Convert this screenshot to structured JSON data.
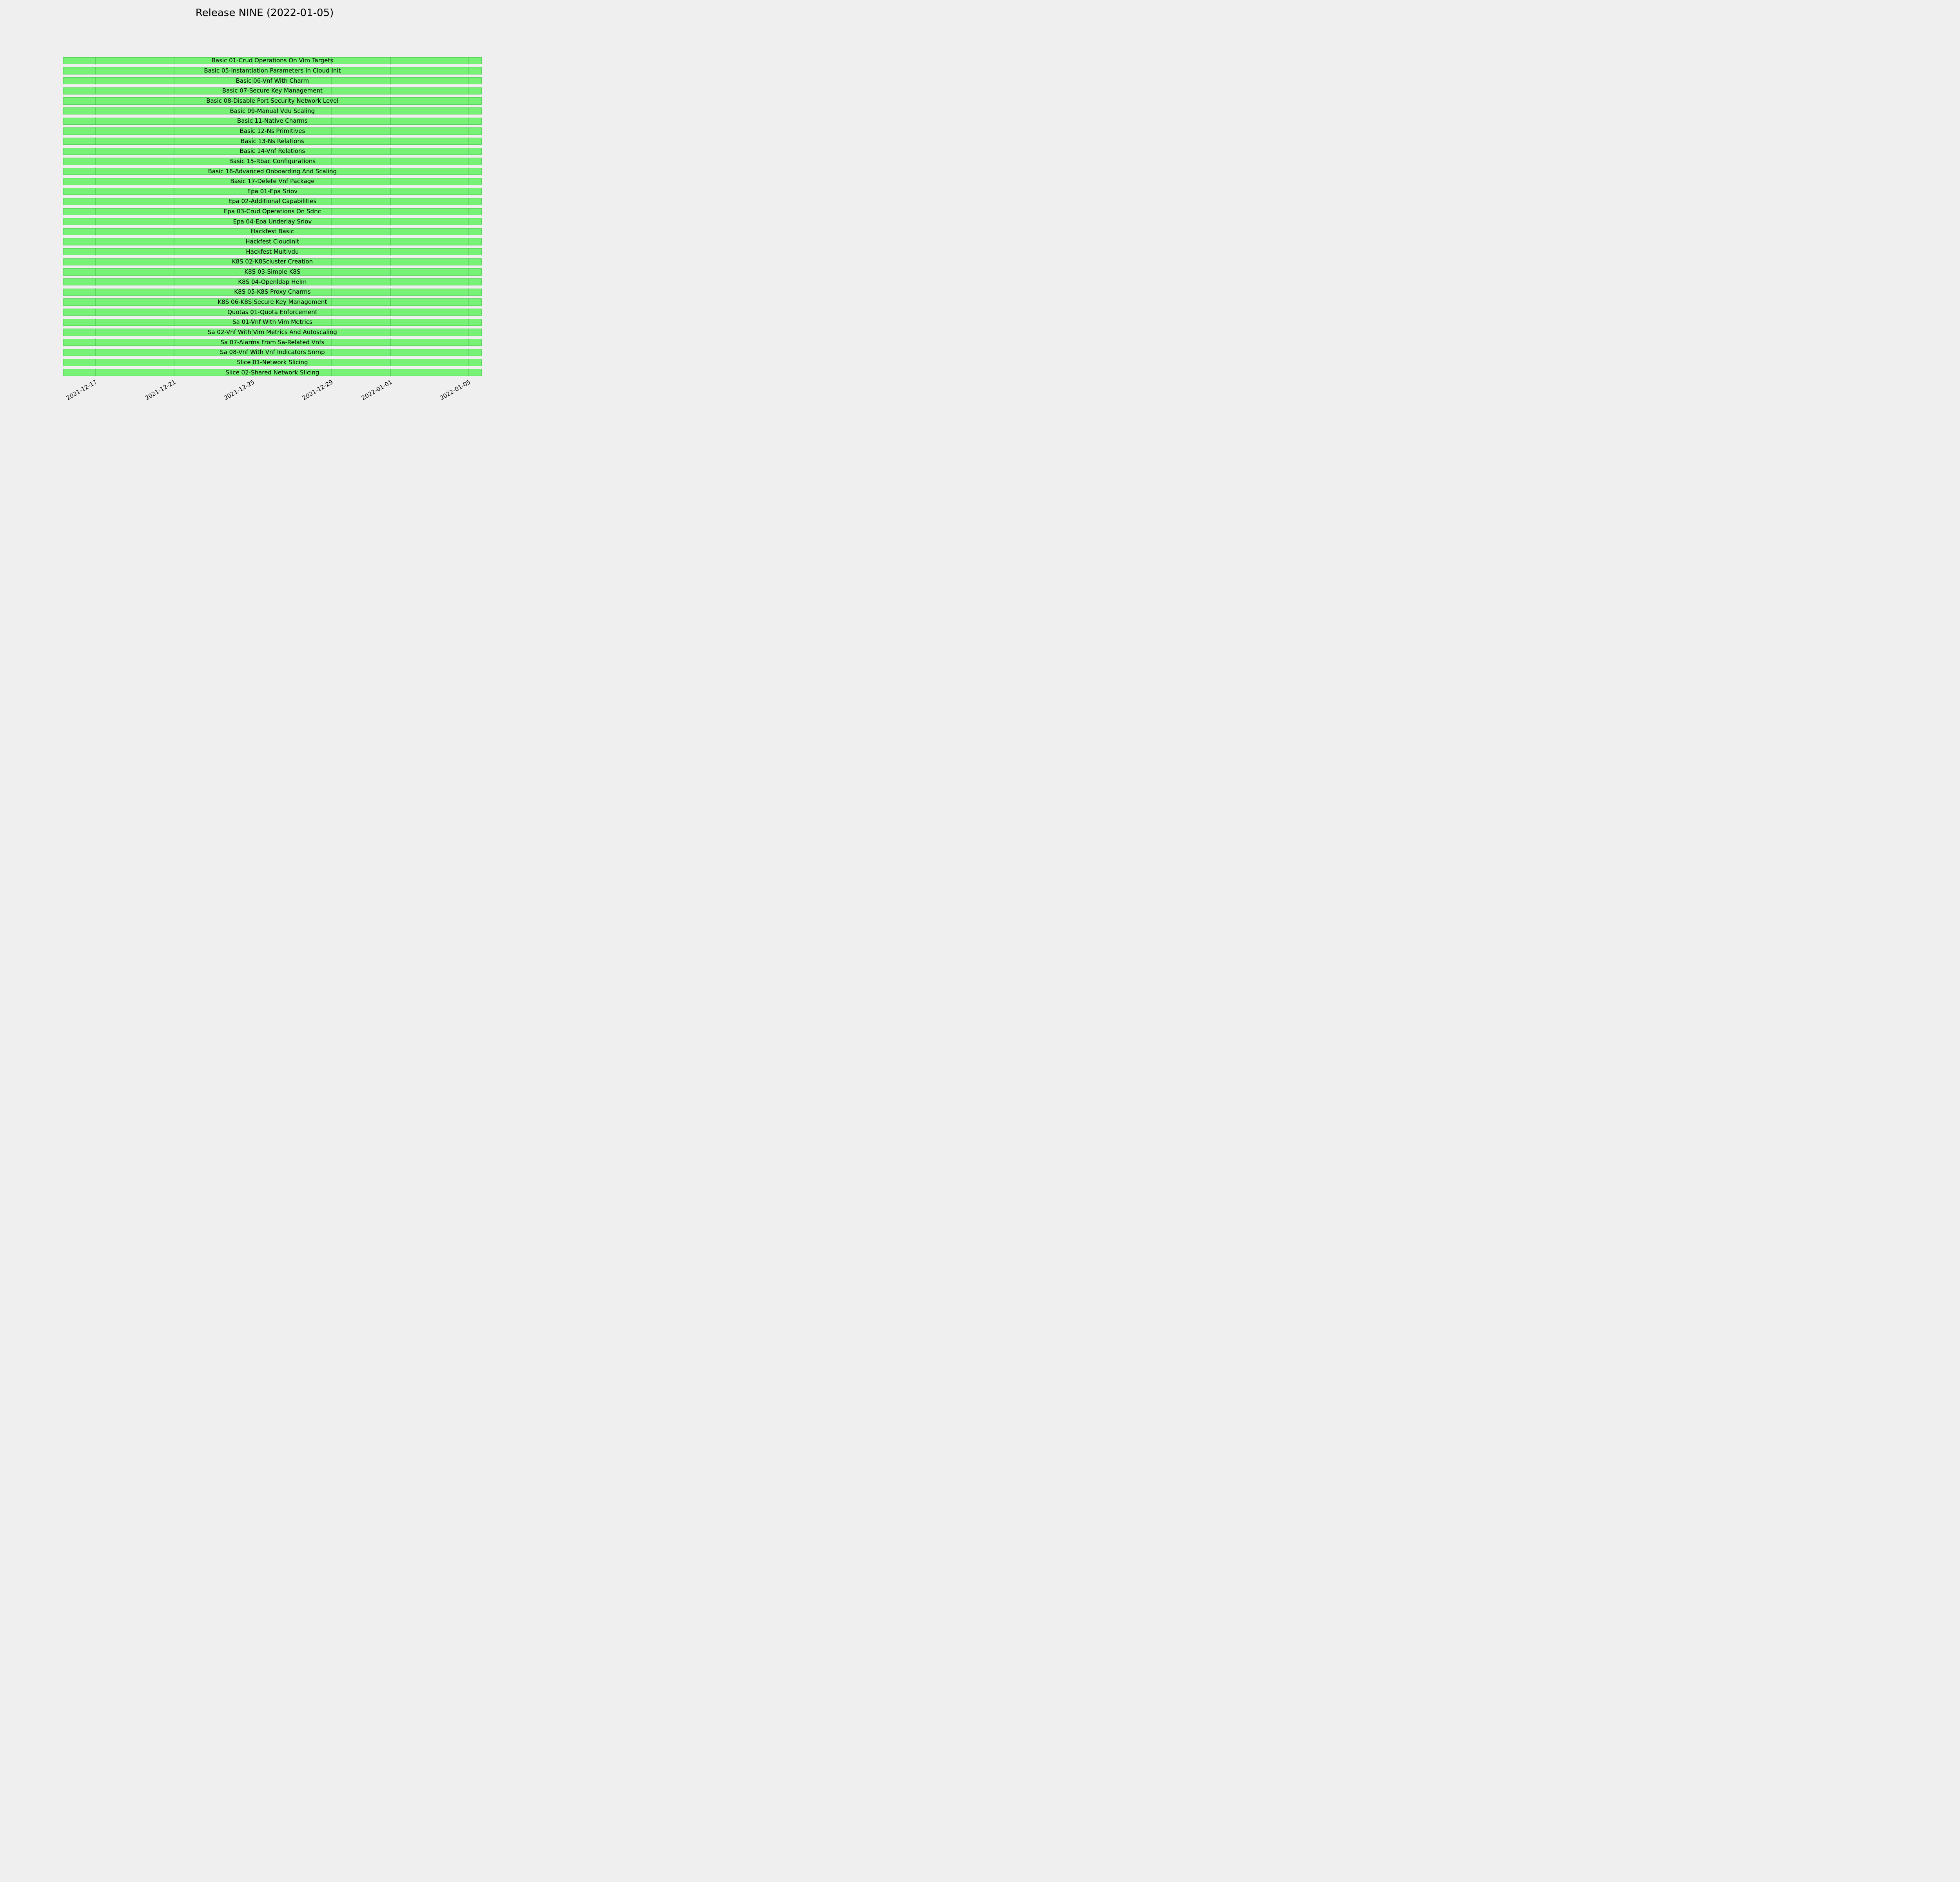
{
  "chart_data": {
    "type": "bar",
    "subtype": "gantt-timeline",
    "title": "Release NINE (2022-01-05)",
    "xlabel": "",
    "ylabel": "",
    "legend": "none",
    "x_axis": {
      "ticks": [
        "2021-12-17",
        "2021-12-21",
        "2021-12-25",
        "2021-12-29",
        "2022-01-01",
        "2022-01-05"
      ],
      "xlim": [
        "2021-12-12T04:00:00",
        "2022-01-08T02:00:00"
      ],
      "tick_rotation_deg": 30,
      "grid": "gridlines visible only where they cross bars"
    },
    "run_window": {
      "start": "2021-12-15T09:00:00",
      "end": "2022-01-05T16:00:00"
    },
    "colors": {
      "background": "#efefef",
      "bar_fill": "#77f277",
      "bar_edge": "#5ad25a",
      "grid_line": "rgba(20,110,20,0.25)",
      "text": "#000000"
    },
    "bars": [
      {
        "label": "Basic 01-Crud Operations On Vim Targets",
        "start": "2021-12-15T09:00:00",
        "end": "2022-01-05T16:00:00",
        "status_color": "#77f277"
      },
      {
        "label": "Basic 05-Instantiation Parameters In Cloud Init",
        "start": "2021-12-15T09:00:00",
        "end": "2022-01-05T16:00:00",
        "status_color": "#77f277"
      },
      {
        "label": "Basic 06-Vnf With Charm",
        "start": "2021-12-15T09:00:00",
        "end": "2022-01-05T16:00:00",
        "status_color": "#77f277"
      },
      {
        "label": "Basic 07-Secure Key Management",
        "start": "2021-12-15T09:00:00",
        "end": "2022-01-05T16:00:00",
        "status_color": "#77f277"
      },
      {
        "label": "Basic 08-Disable Port Security Network Level",
        "start": "2021-12-15T09:00:00",
        "end": "2022-01-05T16:00:00",
        "status_color": "#77f277"
      },
      {
        "label": "Basic 09-Manual Vdu Scaling",
        "start": "2021-12-15T09:00:00",
        "end": "2022-01-05T16:00:00",
        "status_color": "#77f277"
      },
      {
        "label": "Basic 11-Native Charms",
        "start": "2021-12-15T09:00:00",
        "end": "2022-01-05T16:00:00",
        "status_color": "#77f277"
      },
      {
        "label": "Basic 12-Ns Primitives",
        "start": "2021-12-15T09:00:00",
        "end": "2022-01-05T16:00:00",
        "status_color": "#77f277"
      },
      {
        "label": "Basic 13-Ns Relations",
        "start": "2021-12-15T09:00:00",
        "end": "2022-01-05T16:00:00",
        "status_color": "#77f277"
      },
      {
        "label": "Basic 14-Vnf Relations",
        "start": "2021-12-15T09:00:00",
        "end": "2022-01-05T16:00:00",
        "status_color": "#77f277"
      },
      {
        "label": "Basic 15-Rbac Configurations",
        "start": "2021-12-15T09:00:00",
        "end": "2022-01-05T16:00:00",
        "status_color": "#77f277"
      },
      {
        "label": "Basic 16-Advanced Onboarding And Scaling",
        "start": "2021-12-15T09:00:00",
        "end": "2022-01-05T16:00:00",
        "status_color": "#77f277"
      },
      {
        "label": "Basic 17-Delete Vnf Package",
        "start": "2021-12-15T09:00:00",
        "end": "2022-01-05T16:00:00",
        "status_color": "#77f277"
      },
      {
        "label": "Epa 01-Epa Sriov",
        "start": "2021-12-15T09:00:00",
        "end": "2022-01-05T16:00:00",
        "status_color": "#77f277"
      },
      {
        "label": "Epa 02-Additional Capabilities",
        "start": "2021-12-15T09:00:00",
        "end": "2022-01-05T16:00:00",
        "status_color": "#77f277"
      },
      {
        "label": "Epa 03-Crud Operations On Sdnc",
        "start": "2021-12-15T09:00:00",
        "end": "2022-01-05T16:00:00",
        "status_color": "#77f277"
      },
      {
        "label": "Epa 04-Epa Underlay Sriov",
        "start": "2021-12-15T09:00:00",
        "end": "2022-01-05T16:00:00",
        "status_color": "#77f277"
      },
      {
        "label": "Hackfest Basic",
        "start": "2021-12-15T09:00:00",
        "end": "2022-01-05T16:00:00",
        "status_color": "#77f277"
      },
      {
        "label": "Hackfest Cloudinit",
        "start": "2021-12-15T09:00:00",
        "end": "2022-01-05T16:00:00",
        "status_color": "#77f277"
      },
      {
        "label": "Hackfest Multivdu",
        "start": "2021-12-15T09:00:00",
        "end": "2022-01-05T16:00:00",
        "status_color": "#77f277"
      },
      {
        "label": "K8S 02-K8Scluster Creation",
        "start": "2021-12-15T09:00:00",
        "end": "2022-01-05T16:00:00",
        "status_color": "#77f277"
      },
      {
        "label": "K8S 03-Simple K8S",
        "start": "2021-12-15T09:00:00",
        "end": "2022-01-05T16:00:00",
        "status_color": "#77f277"
      },
      {
        "label": "K8S 04-Openldap Helm",
        "start": "2021-12-15T09:00:00",
        "end": "2022-01-05T16:00:00",
        "status_color": "#77f277"
      },
      {
        "label": "K8S 05-K8S Proxy Charms",
        "start": "2021-12-15T09:00:00",
        "end": "2022-01-05T16:00:00",
        "status_color": "#77f277"
      },
      {
        "label": "K8S 06-K8S Secure Key Management",
        "start": "2021-12-15T09:00:00",
        "end": "2022-01-05T16:00:00",
        "status_color": "#77f277"
      },
      {
        "label": "Quotas 01-Quota Enforcement",
        "start": "2021-12-15T09:00:00",
        "end": "2022-01-05T16:00:00",
        "status_color": "#77f277"
      },
      {
        "label": "Sa 01-Vnf With Vim Metrics",
        "start": "2021-12-15T09:00:00",
        "end": "2022-01-05T16:00:00",
        "status_color": "#77f277"
      },
      {
        "label": "Sa 02-Vnf With Vim Metrics And Autoscaling",
        "start": "2021-12-15T09:00:00",
        "end": "2022-01-05T16:00:00",
        "status_color": "#77f277"
      },
      {
        "label": "Sa 07-Alarms From Sa-Related Vnfs",
        "start": "2021-12-15T09:00:00",
        "end": "2022-01-05T16:00:00",
        "status_color": "#77f277"
      },
      {
        "label": "Sa 08-Vnf With Vnf Indicators Snmp",
        "start": "2021-12-15T09:00:00",
        "end": "2022-01-05T16:00:00",
        "status_color": "#77f277"
      },
      {
        "label": "Slice 01-Network Slicing",
        "start": "2021-12-15T09:00:00",
        "end": "2022-01-05T16:00:00",
        "status_color": "#77f277"
      },
      {
        "label": "Slice 02-Shared Network Slicing",
        "start": "2021-12-15T09:00:00",
        "end": "2022-01-05T16:00:00",
        "status_color": "#77f277"
      }
    ]
  }
}
